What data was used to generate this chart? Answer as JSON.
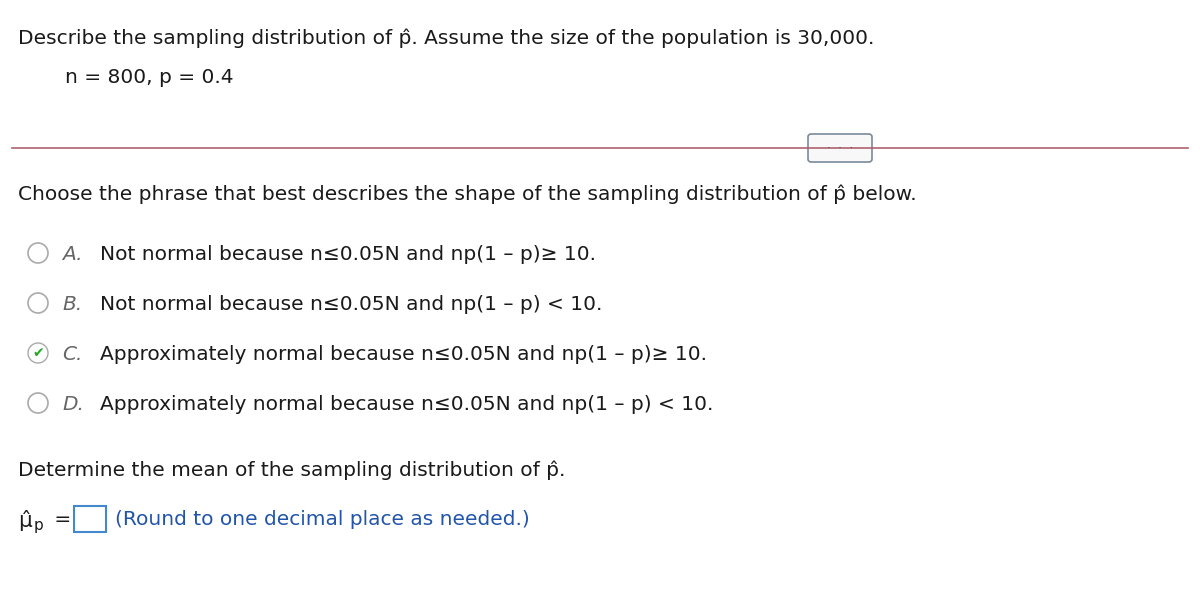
{
  "title_line": "Describe the sampling distribution of p̂. Assume the size of the population is 30,000.",
  "params_line": "n = 800, p = 0.4",
  "question_line": "Choose the phrase that best describes the shape of the sampling distribution of p̂ below.",
  "options": [
    {
      "label": "A.",
      "text": "Not normal because n≤0.05N and np(1 – p)≥ 10."
    },
    {
      "label": "B.",
      "text": "Not normal because n≤0.05N and np(1 – p) < 10."
    },
    {
      "label": "C.",
      "text": "Approximately normal because n≤0.05N and np(1 – p)≥ 10."
    },
    {
      "label": "D.",
      "text": "Approximately normal because n≤0.05N and np(1 – p) < 10."
    }
  ],
  "correct_option": 2,
  "determine_line": "Determine the mean of the sampling distribution of p̂.",
  "round_note": "(Round to one decimal place as needed.)",
  "separator_dots": "·  ·  ·",
  "bg_color": "#ffffff",
  "text_color": "#1a1a1a",
  "label_color": "#666666",
  "blue_color": "#2255aa",
  "checked_color": "#22aa22",
  "separator_color": "#b06070",
  "dot_box_edge": "#7a8a9a",
  "dot_box_face": "#f8f8f8",
  "box_edge_color": "#4488cc",
  "font_size": 14.5,
  "font_size_small": 11,
  "separator_lw": 1.2
}
